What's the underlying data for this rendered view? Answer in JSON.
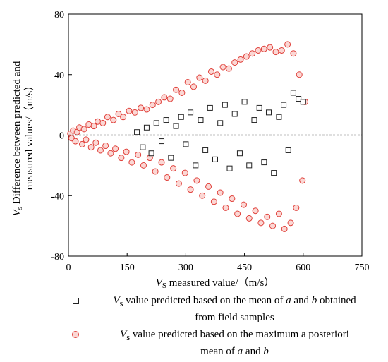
{
  "chart_data": {
    "type": "scatter",
    "title": "",
    "xlabel_parts": [
      "V",
      "S",
      " measured value/（m/s）"
    ],
    "ylabel_lines": [
      {
        "var": "V",
        "sub": "s",
        "text": " Difference between predicted and"
      },
      {
        "text": "measured values/（m/s）"
      }
    ],
    "xlim": [
      0,
      750
    ],
    "ylim": [
      -80,
      80
    ],
    "xticks": [
      0,
      150,
      300,
      450,
      600,
      750
    ],
    "yticks": [
      -80,
      -40,
      0,
      40,
      80
    ],
    "reference_line_y": 0,
    "colors": {
      "posterior_stroke": "#e0403a",
      "posterior_fill": "#fbd7d4",
      "field_stroke": "#222222"
    },
    "series": [
      {
        "key": "field",
        "marker": "square",
        "legend": {
          "var": "V",
          "sub": "s",
          "parts": [
            " value predicted based on the mean of ",
            "a",
            " and ",
            "b",
            " obtained"
          ],
          "line2": "from field samples"
        },
        "x": [
          175,
          190,
          200,
          212,
          225,
          238,
          250,
          262,
          275,
          288,
          300,
          312,
          325,
          338,
          350,
          362,
          375,
          388,
          400,
          412,
          425,
          438,
          450,
          462,
          475,
          488,
          500,
          512,
          525,
          538,
          550,
          562,
          575,
          588,
          600
        ],
        "y": [
          2,
          -8,
          5,
          -12,
          8,
          -4,
          10,
          -15,
          6,
          12,
          -6,
          15,
          -20,
          10,
          -10,
          18,
          -16,
          8,
          20,
          -22,
          14,
          -12,
          22,
          -20,
          10,
          18,
          -18,
          15,
          -25,
          12,
          20,
          -10,
          28,
          24,
          22
        ]
      },
      {
        "key": "posterior",
        "marker": "circle",
        "legend": {
          "var": "V",
          "sub": "s",
          "parts": [
            " value predicted based on the maximum a posteriori"
          ],
          "line2_parts": [
            "mean of ",
            "a",
            " and ",
            "b"
          ]
        },
        "x": [
          5,
          8,
          12,
          18,
          22,
          28,
          35,
          40,
          45,
          52,
          58,
          65,
          70,
          75,
          82,
          88,
          95,
          100,
          108,
          115,
          120,
          128,
          135,
          140,
          148,
          155,
          162,
          170,
          178,
          185,
          192,
          200,
          208,
          215,
          222,
          230,
          238,
          245,
          252,
          260,
          268,
          275,
          282,
          290,
          298,
          305,
          312,
          320,
          328,
          335,
          342,
          350,
          358,
          365,
          372,
          380,
          388,
          395,
          402,
          410,
          418,
          425,
          432,
          440,
          448,
          455,
          462,
          470,
          478,
          485,
          492,
          500,
          508,
          515,
          522,
          530,
          538,
          545,
          552,
          560,
          568,
          575,
          582,
          590,
          598,
          605
        ],
        "y": [
          1,
          -2,
          3,
          -4,
          2,
          5,
          -6,
          4,
          -3,
          7,
          -8,
          6,
          -5,
          9,
          -10,
          8,
          -7,
          12,
          -12,
          10,
          -9,
          14,
          -15,
          12,
          -11,
          16,
          -18,
          15,
          -13,
          18,
          -20,
          17,
          -15,
          20,
          -24,
          22,
          -18,
          25,
          -28,
          24,
          -22,
          30,
          -32,
          28,
          -25,
          35,
          -36,
          32,
          -30,
          38,
          -40,
          36,
          -34,
          42,
          -44,
          40,
          -38,
          45,
          -48,
          44,
          -42,
          48,
          -52,
          50,
          -46,
          52,
          -55,
          54,
          -50,
          56,
          -58,
          57,
          -54,
          58,
          -60,
          55,
          -52,
          56,
          -62,
          60,
          -58,
          54,
          -48,
          40,
          -30,
          22
        ]
      }
    ]
  }
}
